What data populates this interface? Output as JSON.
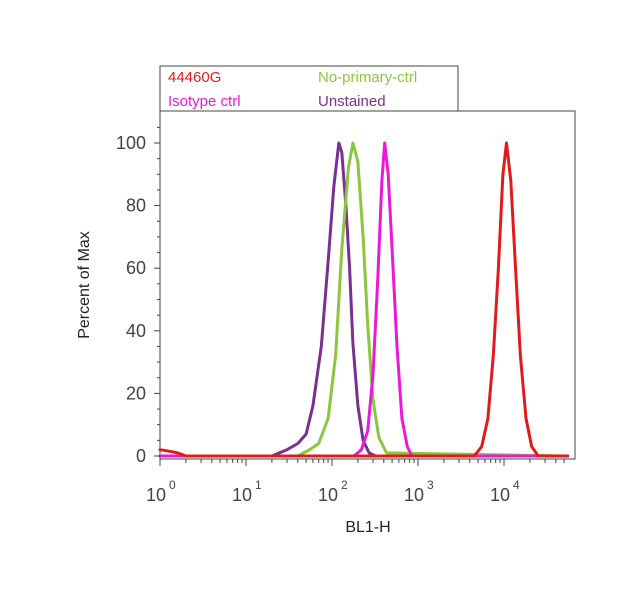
{
  "chart_data": {
    "type": "line",
    "title": "",
    "xlabel": "BL1-H",
    "ylabel": "Percent of Max",
    "x_scale": "log",
    "xlim": [
      1,
      55000
    ],
    "ylim": [
      0,
      110
    ],
    "x_ticks": [
      {
        "value": 1,
        "base": "10",
        "exp": "0"
      },
      {
        "value": 10,
        "base": "10",
        "exp": "1"
      },
      {
        "value": 100,
        "base": "10",
        "exp": "2"
      },
      {
        "value": 1000,
        "base": "10",
        "exp": "3"
      },
      {
        "value": 10000,
        "base": "10",
        "exp": "4"
      }
    ],
    "y_ticks": [
      0,
      20,
      40,
      60,
      80,
      100
    ],
    "legend_position": "top-left",
    "series": [
      {
        "name": "Unstained",
        "color": "#7b2f91",
        "x": [
          1,
          20,
          30,
          40,
          50,
          60,
          75,
          90,
          105,
          120,
          130,
          145,
          160,
          175,
          200,
          230,
          270,
          320,
          55000
        ],
        "y": [
          0,
          0,
          2,
          4,
          7,
          16,
          35,
          62,
          86,
          100,
          97,
          80,
          60,
          36,
          16,
          5,
          1,
          0,
          0
        ]
      },
      {
        "name": "No-primary-ctrl",
        "color": "#8cc63f",
        "x": [
          1,
          40,
          55,
          70,
          90,
          110,
          130,
          155,
          175,
          200,
          230,
          260,
          300,
          350,
          430,
          55000
        ],
        "y": [
          0,
          0,
          2,
          4,
          12,
          32,
          66,
          92,
          100,
          94,
          70,
          42,
          18,
          6,
          1,
          0
        ]
      },
      {
        "name": "Isotype ctrl",
        "color": "#e81ad8",
        "x": [
          1,
          180,
          220,
          260,
          300,
          340,
          380,
          410,
          450,
          500,
          570,
          650,
          750,
          850,
          55000
        ],
        "y": [
          0,
          0,
          2,
          8,
          26,
          56,
          88,
          100,
          90,
          66,
          35,
          12,
          3,
          0,
          0
        ]
      },
      {
        "name": "44460G",
        "color": "#e01b1b",
        "x": [
          1,
          1.3,
          1.6,
          2,
          4500,
          5500,
          6500,
          7500,
          8600,
          9700,
          10700,
          12000,
          13500,
          15500,
          18000,
          21000,
          25000,
          55000
        ],
        "y": [
          2,
          1.5,
          1,
          0,
          0,
          3,
          12,
          32,
          60,
          90,
          100,
          88,
          62,
          32,
          12,
          3,
          0,
          0
        ]
      }
    ]
  },
  "legend": {
    "entries": [
      {
        "label": "44460G",
        "color": "#e01b1b"
      },
      {
        "label": "No-primary-ctrl",
        "color": "#8cc63f"
      },
      {
        "label": "Isotype ctrl",
        "color": "#e81ad8"
      },
      {
        "label": "Unstained",
        "color": "#7b2f91"
      }
    ]
  }
}
